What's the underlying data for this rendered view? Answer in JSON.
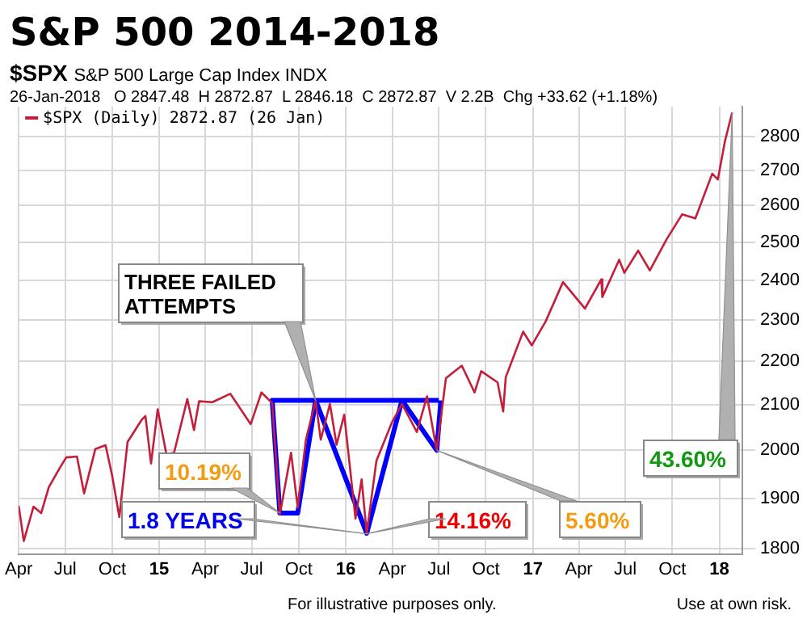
{
  "chart_data": {
    "type": "line",
    "title": "S&P 500 2014-2018",
    "subtitle": "$SPX S&P 500 Large Cap Index INDX",
    "log": "y",
    "grid": true,
    "legend": "top left",
    "line_style": "solid",
    "marker": "none",
    "xlim": [
      "2014-04-01",
      "2018-02-15"
    ],
    "xticks": [
      {
        "value": "2014-04-01",
        "label": "Apr"
      },
      {
        "value": "2014-07-01",
        "label": "Jul"
      },
      {
        "value": "2014-10-01",
        "label": "Oct"
      },
      {
        "value": "2015-01-01",
        "label": "15"
      },
      {
        "value": "2015-04-01",
        "label": "Apr"
      },
      {
        "value": "2015-07-01",
        "label": "Jul"
      },
      {
        "value": "2015-10-01",
        "label": "Oct"
      },
      {
        "value": "2016-01-01",
        "label": "16"
      },
      {
        "value": "2016-04-01",
        "label": "Apr"
      },
      {
        "value": "2016-07-01",
        "label": "Jul"
      },
      {
        "value": "2016-10-01",
        "label": "Oct"
      },
      {
        "value": "2017-01-01",
        "label": "17"
      },
      {
        "value": "2017-04-01",
        "label": "Apr"
      },
      {
        "value": "2017-07-01",
        "label": "Jul"
      },
      {
        "value": "2017-10-01",
        "label": "Oct"
      },
      {
        "value": "2018-01-01",
        "label": "18"
      }
    ],
    "ylim": [
      1790,
      2890
    ],
    "yticks": [
      1800,
      1900,
      2000,
      2100,
      2200,
      2300,
      2400,
      2500,
      2600,
      2700,
      2800
    ],
    "x": [
      "2014-04-01",
      "2014-04-11",
      "2014-04-30",
      "2014-05-15",
      "2014-05-30",
      "2014-06-20",
      "2014-07-03",
      "2014-07-24",
      "2014-08-07",
      "2014-08-29",
      "2014-09-18",
      "2014-10-01",
      "2014-10-15",
      "2014-10-31",
      "2014-11-28",
      "2014-12-05",
      "2014-12-16",
      "2014-12-29",
      "2015-01-15",
      "2015-01-30",
      "2015-02-25",
      "2015-03-10",
      "2015-03-20",
      "2015-04-15",
      "2015-05-20",
      "2015-06-29",
      "2015-07-20",
      "2015-08-10",
      "2015-08-25",
      "2015-09-16",
      "2015-09-29",
      "2015-10-15",
      "2015-11-03",
      "2015-11-13",
      "2015-12-01",
      "2015-12-14",
      "2015-12-29",
      "2016-01-20",
      "2016-02-01",
      "2016-02-11",
      "2016-03-01",
      "2016-03-31",
      "2016-04-20",
      "2016-05-19",
      "2016-06-08",
      "2016-06-27",
      "2016-07-15",
      "2016-08-15",
      "2016-09-09",
      "2016-09-22",
      "2016-10-24",
      "2016-11-04",
      "2016-11-09",
      "2016-12-13",
      "2016-12-30",
      "2017-01-26",
      "2017-03-01",
      "2017-04-13",
      "2017-05-15",
      "2017-05-17",
      "2017-06-19",
      "2017-06-29",
      "2017-07-26",
      "2017-08-18",
      "2017-09-20",
      "2017-10-20",
      "2017-11-15",
      "2017-12-18",
      "2017-12-29",
      "2018-01-12",
      "2018-01-26"
    ],
    "series": [
      {
        "name": "$SPX (Daily) 2872.87 (26 Jan)",
        "color": "#c41e3a",
        "values": [
          1885,
          1815,
          1883,
          1870,
          1923,
          1962,
          1985,
          1987,
          1910,
          2003,
          2011,
          1946,
          1862,
          2018,
          2067,
          2075,
          1972,
          2090,
          1992,
          1995,
          2113,
          2044,
          2108,
          2106,
          2125,
          2057,
          2128,
          2104,
          1867,
          1995,
          1881,
          2023,
          2109,
          2023,
          2102,
          2012,
          2078,
          1859,
          1939,
          1829,
          1978,
          2060,
          2102,
          2040,
          2119,
          2000,
          2161,
          2190,
          2128,
          2177,
          2151,
          2085,
          2163,
          2271,
          2238,
          2296,
          2395,
          2328,
          2402,
          2357,
          2453,
          2419,
          2477,
          2425,
          2508,
          2575,
          2564,
          2690,
          2673,
          2786,
          2872
        ]
      },
      {
        "type": "line",
        "color": "#0000ff",
        "x": [
          "2016-07-01",
          "2015-08-10",
          "2015-08-25",
          "2015-09-29",
          "2015-11-03",
          "2016-02-11",
          "2016-04-20",
          "2016-06-27",
          "2016-07-05"
        ],
        "values": [
          2110,
          2110,
          1870,
          1870,
          2110,
          1830,
          2110,
          2000,
          2110
        ]
      }
    ],
    "annotations": [
      "26-Jan-2018   O 2847.48  H 2872.87  L 2846.18  C 2872.87  V 2.2B  Chg +33.62 (+1.18%)",
      {
        "text": "THREE FAILED ATTEMPTS",
        "x": "2015-11-03",
        "y": 2110
      },
      {
        "text": "10.19%",
        "x": "2015-08-25",
        "y": 1870
      },
      {
        "text": "1.8 YEARS",
        "x": "2016-02-11",
        "y": 1829
      },
      {
        "text": "14.16%",
        "x": "2016-02-11",
        "y": 1829
      },
      {
        "text": "5.60%",
        "x": "2016-06-27",
        "y": 2000
      },
      {
        "text": "43.60%",
        "x": "2018-01-26",
        "y": 2872
      },
      "For illustrative purposes only.",
      "Use at own risk."
    ]
  }
}
